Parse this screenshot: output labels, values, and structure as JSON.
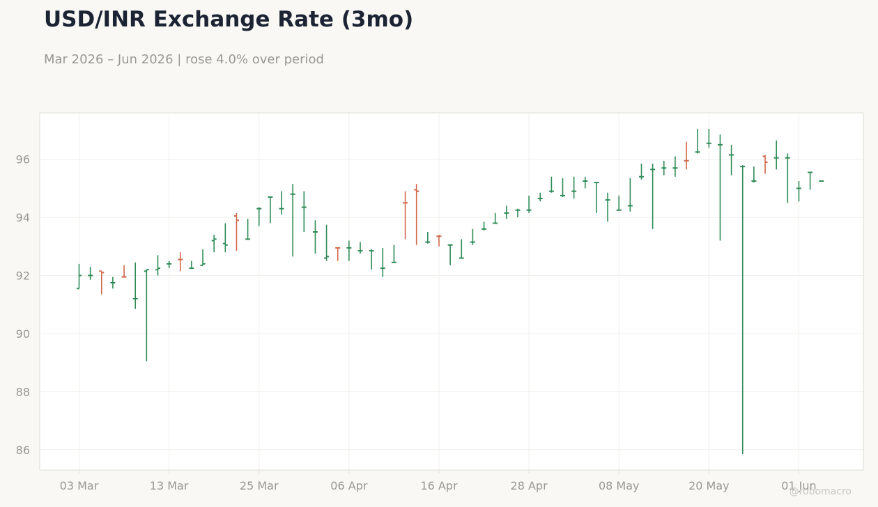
{
  "title": "USD/INR Exchange Rate (3mo)",
  "subtitle": "Mar 2026 – Jun 2026 | rose 4.0% over period",
  "watermark": "@robomacro",
  "colors": {
    "up": "#2e8b57",
    "down": "#d0684a",
    "grid": "#f0efec",
    "frame": "#dddcd8",
    "plot_bg": "#ffffff",
    "page_bg": "#f9f8f5"
  },
  "chart_data": {
    "type": "ohlc",
    "x_ticks": [
      "03 Mar",
      "13 Mar",
      "25 Mar",
      "06 Apr",
      "16 Apr",
      "28 Apr",
      "08 May",
      "20 May",
      "01 Jun"
    ],
    "x_tick_index": [
      0,
      8,
      16,
      24,
      32,
      40,
      48,
      56,
      64
    ],
    "y_ticks": [
      86,
      88,
      90,
      92,
      94,
      96
    ],
    "ylim": [
      85.3,
      97.6
    ],
    "grid": true,
    "bars": [
      {
        "o": 91.55,
        "h": 92.4,
        "l": 91.55,
        "c": 92.0,
        "dir": "up"
      },
      {
        "o": 92.0,
        "h": 92.3,
        "l": 91.85,
        "c": 92.0,
        "dir": "up"
      },
      {
        "o": 92.15,
        "h": 92.15,
        "l": 91.35,
        "c": 92.1,
        "dir": "down"
      },
      {
        "o": 91.75,
        "h": 91.95,
        "l": 91.55,
        "c": 91.75,
        "dir": "up"
      },
      {
        "o": 91.95,
        "h": 92.35,
        "l": 91.95,
        "c": 91.95,
        "dir": "down"
      },
      {
        "o": 91.2,
        "h": 92.45,
        "l": 90.85,
        "c": 91.2,
        "dir": "up"
      },
      {
        "o": 92.15,
        "h": 92.2,
        "l": 89.05,
        "c": 92.2,
        "dir": "up"
      },
      {
        "o": 92.2,
        "h": 92.7,
        "l": 92.0,
        "c": 92.25,
        "dir": "up"
      },
      {
        "o": 92.4,
        "h": 92.5,
        "l": 92.25,
        "c": 92.4,
        "dir": "up"
      },
      {
        "o": 92.55,
        "h": 92.8,
        "l": 92.15,
        "c": 92.55,
        "dir": "down"
      },
      {
        "o": 92.25,
        "h": 92.5,
        "l": 92.25,
        "c": 92.25,
        "dir": "up"
      },
      {
        "o": 92.35,
        "h": 92.9,
        "l": 92.35,
        "c": 92.4,
        "dir": "up"
      },
      {
        "o": 93.2,
        "h": 93.4,
        "l": 92.8,
        "c": 93.25,
        "dir": "up"
      },
      {
        "o": 93.1,
        "h": 93.8,
        "l": 92.8,
        "c": 93.05,
        "dir": "up"
      },
      {
        "o": 94.05,
        "h": 94.15,
        "l": 92.85,
        "c": 93.9,
        "dir": "down"
      },
      {
        "o": 93.25,
        "h": 93.95,
        "l": 93.25,
        "c": 93.25,
        "dir": "up"
      },
      {
        "o": 94.3,
        "h": 94.35,
        "l": 93.7,
        "c": 94.3,
        "dir": "up"
      },
      {
        "o": 94.7,
        "h": 94.7,
        "l": 93.8,
        "c": 94.7,
        "dir": "up"
      },
      {
        "o": 94.3,
        "h": 94.9,
        "l": 94.1,
        "c": 94.3,
        "dir": "up"
      },
      {
        "o": 94.8,
        "h": 95.15,
        "l": 92.65,
        "c": 94.8,
        "dir": "up"
      },
      {
        "o": 94.35,
        "h": 94.9,
        "l": 93.5,
        "c": 94.35,
        "dir": "up"
      },
      {
        "o": 93.5,
        "h": 93.9,
        "l": 92.75,
        "c": 93.5,
        "dir": "up"
      },
      {
        "o": 92.6,
        "h": 93.75,
        "l": 92.5,
        "c": 92.65,
        "dir": "up"
      },
      {
        "o": 92.95,
        "h": 92.95,
        "l": 92.5,
        "c": 92.95,
        "dir": "down"
      },
      {
        "o": 92.95,
        "h": 93.2,
        "l": 92.5,
        "c": 92.95,
        "dir": "up"
      },
      {
        "o": 92.85,
        "h": 93.15,
        "l": 92.75,
        "c": 92.85,
        "dir": "up"
      },
      {
        "o": 92.85,
        "h": 92.9,
        "l": 92.2,
        "c": 92.85,
        "dir": "up"
      },
      {
        "o": 92.25,
        "h": 92.95,
        "l": 91.95,
        "c": 92.25,
        "dir": "up"
      },
      {
        "o": 92.45,
        "h": 93.05,
        "l": 92.45,
        "c": 92.45,
        "dir": "up"
      },
      {
        "o": 94.5,
        "h": 94.9,
        "l": 93.25,
        "c": 94.5,
        "dir": "down"
      },
      {
        "o": 94.95,
        "h": 95.15,
        "l": 93.05,
        "c": 94.9,
        "dir": "down"
      },
      {
        "o": 93.15,
        "h": 93.5,
        "l": 93.1,
        "c": 93.15,
        "dir": "up"
      },
      {
        "o": 93.35,
        "h": 93.4,
        "l": 93.0,
        "c": 93.35,
        "dir": "down"
      },
      {
        "o": 93.05,
        "h": 93.05,
        "l": 92.35,
        "c": 93.05,
        "dir": "up"
      },
      {
        "o": 92.6,
        "h": 93.25,
        "l": 92.6,
        "c": 92.6,
        "dir": "up"
      },
      {
        "o": 93.15,
        "h": 93.6,
        "l": 93.05,
        "c": 93.15,
        "dir": "up"
      },
      {
        "o": 93.6,
        "h": 93.85,
        "l": 93.55,
        "c": 93.6,
        "dir": "up"
      },
      {
        "o": 93.8,
        "h": 94.15,
        "l": 93.8,
        "c": 93.8,
        "dir": "up"
      },
      {
        "o": 94.15,
        "h": 94.4,
        "l": 93.95,
        "c": 94.15,
        "dir": "up"
      },
      {
        "o": 94.25,
        "h": 94.3,
        "l": 94.0,
        "c": 94.25,
        "dir": "up"
      },
      {
        "o": 94.25,
        "h": 94.75,
        "l": 94.15,
        "c": 94.25,
        "dir": "up"
      },
      {
        "o": 94.65,
        "h": 94.85,
        "l": 94.55,
        "c": 94.65,
        "dir": "up"
      },
      {
        "o": 94.9,
        "h": 95.4,
        "l": 94.85,
        "c": 94.9,
        "dir": "up"
      },
      {
        "o": 94.75,
        "h": 95.35,
        "l": 94.7,
        "c": 94.75,
        "dir": "up"
      },
      {
        "o": 94.9,
        "h": 95.4,
        "l": 94.65,
        "c": 94.9,
        "dir": "up"
      },
      {
        "o": 95.25,
        "h": 95.4,
        "l": 95.0,
        "c": 95.25,
        "dir": "up"
      },
      {
        "o": 95.2,
        "h": 95.2,
        "l": 94.15,
        "c": 95.2,
        "dir": "up"
      },
      {
        "o": 94.6,
        "h": 94.85,
        "l": 93.85,
        "c": 94.6,
        "dir": "up"
      },
      {
        "o": 94.25,
        "h": 94.75,
        "l": 94.25,
        "c": 94.25,
        "dir": "up"
      },
      {
        "o": 94.4,
        "h": 95.35,
        "l": 94.2,
        "c": 94.4,
        "dir": "up"
      },
      {
        "o": 95.4,
        "h": 95.85,
        "l": 95.3,
        "c": 95.4,
        "dir": "up"
      },
      {
        "o": 95.65,
        "h": 95.85,
        "l": 93.6,
        "c": 95.65,
        "dir": "up"
      },
      {
        "o": 95.7,
        "h": 95.95,
        "l": 95.45,
        "c": 95.7,
        "dir": "up"
      },
      {
        "o": 95.7,
        "h": 96.1,
        "l": 95.4,
        "c": 95.7,
        "dir": "up"
      },
      {
        "o": 95.95,
        "h": 96.6,
        "l": 95.65,
        "c": 95.95,
        "dir": "down"
      },
      {
        "o": 96.25,
        "h": 97.05,
        "l": 96.2,
        "c": 96.25,
        "dir": "up"
      },
      {
        "o": 96.55,
        "h": 97.05,
        "l": 96.4,
        "c": 96.55,
        "dir": "up"
      },
      {
        "o": 96.5,
        "h": 96.85,
        "l": 93.2,
        "c": 96.5,
        "dir": "up"
      },
      {
        "o": 96.15,
        "h": 96.5,
        "l": 95.45,
        "c": 96.15,
        "dir": "up"
      },
      {
        "o": 95.75,
        "h": 95.8,
        "l": 85.85,
        "c": 95.75,
        "dir": "up"
      },
      {
        "o": 95.25,
        "h": 95.75,
        "l": 95.2,
        "c": 95.25,
        "dir": "up"
      },
      {
        "o": 96.1,
        "h": 96.15,
        "l": 95.5,
        "c": 95.9,
        "dir": "down"
      },
      {
        "o": 96.05,
        "h": 96.65,
        "l": 95.65,
        "c": 96.05,
        "dir": "up"
      },
      {
        "o": 96.05,
        "h": 96.2,
        "l": 94.5,
        "c": 96.05,
        "dir": "up"
      },
      {
        "o": 95.0,
        "h": 95.25,
        "l": 94.55,
        "c": 95.0,
        "dir": "up"
      },
      {
        "o": 95.55,
        "h": 95.55,
        "l": 94.95,
        "c": 95.55,
        "dir": "up"
      },
      {
        "o": 95.25,
        "h": 95.25,
        "l": 95.25,
        "c": 95.25,
        "dir": "up"
      }
    ]
  }
}
